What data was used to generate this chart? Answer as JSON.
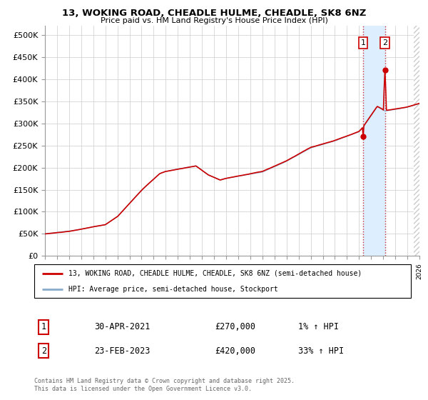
{
  "title": "13, WOKING ROAD, CHEADLE HULME, CHEADLE, SK8 6NZ",
  "subtitle": "Price paid vs. HM Land Registry's House Price Index (HPI)",
  "legend_line1": "13, WOKING ROAD, CHEADLE HULME, CHEADLE, SK8 6NZ (semi-detached house)",
  "legend_line2": "HPI: Average price, semi-detached house, Stockport",
  "sale1_date": "30-APR-2021",
  "sale1_price": "£270,000",
  "sale1_hpi": "1% ↑ HPI",
  "sale2_date": "23-FEB-2023",
  "sale2_price": "£420,000",
  "sale2_hpi": "33% ↑ HPI",
  "footer": "Contains HM Land Registry data © Crown copyright and database right 2025.\nThis data is licensed under the Open Government Licence v3.0.",
  "ylim": [
    0,
    520000
  ],
  "yticks": [
    0,
    50000,
    100000,
    150000,
    200000,
    250000,
    300000,
    350000,
    400000,
    450000,
    500000
  ],
  "ytick_labels": [
    "£0",
    "£50K",
    "£100K",
    "£150K",
    "£200K",
    "£250K",
    "£300K",
    "£350K",
    "£400K",
    "£450K",
    "£500K"
  ],
  "red_color": "#cc0000",
  "blue_color": "#88aacc",
  "shade_color": "#ddeeff",
  "sale1_x": 2021.33,
  "sale2_x": 2023.15,
  "sale1_y": 270000,
  "sale2_y": 420000,
  "xlim": [
    1995,
    2026
  ],
  "hatch_start": 2025.5
}
